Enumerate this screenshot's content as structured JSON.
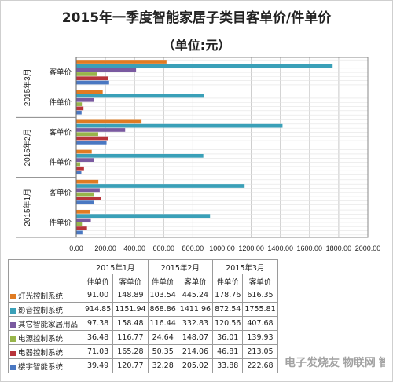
{
  "chart_data": {
    "type": "bar",
    "orientation": "horizontal",
    "title": "2015年一季度智能家居子类目客单价/件单价",
    "subtitle": "（单位:元）",
    "groups": [
      "2015年3月",
      "2015年2月",
      "2015年1月"
    ],
    "metrics": [
      "客单价",
      "件单价"
    ],
    "xlim": [
      0,
      2000
    ],
    "xticks": [
      "0.00",
      "200.00",
      "400.00",
      "600.00",
      "800.00",
      "1000.00",
      "1200.00",
      "1400.00",
      "1600.00",
      "1800.00",
      "2000.00"
    ],
    "grid": true,
    "series": [
      {
        "name": "灯光控制系统",
        "color": "#e07b22",
        "unit_price": [
          178.76,
          103.54,
          91.0
        ],
        "order_price": [
          616.35,
          445.24,
          148.89
        ]
      },
      {
        "name": "影音控制系统",
        "color": "#3aa0b8",
        "unit_price": [
          872.54,
          868.86,
          914.85
        ],
        "order_price": [
          1755.81,
          1411.96,
          1151.94
        ]
      },
      {
        "name": "其它智能家居用品",
        "color": "#7a5aa0",
        "unit_price": [
          120.56,
          116.44,
          97.38
        ],
        "order_price": [
          407.68,
          332.83,
          158.48
        ]
      },
      {
        "name": "电源控制系统",
        "color": "#98b54a",
        "unit_price": [
          36.01,
          24.64,
          36.48
        ],
        "order_price": [
          139.93,
          148.07,
          116.77
        ]
      },
      {
        "name": "电器控制系统",
        "color": "#b8343a",
        "unit_price": [
          46.81,
          50.35,
          71.03
        ],
        "order_price": [
          213.05,
          214.06,
          165.28
        ]
      },
      {
        "name": "楼宇智能系统",
        "color": "#4a78c2",
        "unit_price": [
          33.88,
          32.28,
          39.49
        ],
        "order_price": [
          222.68,
          205.02,
          120.77
        ]
      }
    ],
    "table": {
      "months": [
        "2015年1月",
        "2015年2月",
        "2015年3月"
      ],
      "subheaders": [
        "件单价",
        "客单价"
      ]
    }
  },
  "watermark": "电子发烧友 物联网 智库"
}
